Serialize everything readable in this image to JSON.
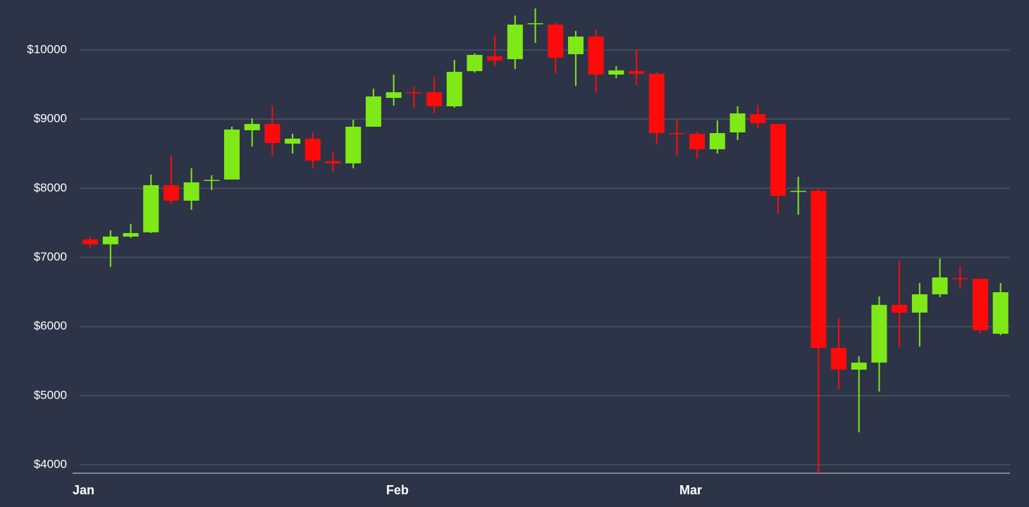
{
  "chart_data": {
    "type": "candlestick",
    "x": [
      1.75,
      3.75,
      5.75,
      7.75,
      9.75,
      11.75,
      13.75,
      15.75,
      17.75,
      19.75,
      21.75,
      23.75,
      25.75,
      27.75,
      29.75,
      31.75,
      33.75,
      35.75,
      37.75,
      39.75,
      41.75,
      43.75,
      45.75,
      47.75,
      49.75,
      51.75,
      53.75,
      55.75,
      57.75,
      59.75,
      61.75,
      63.75,
      65.75,
      67.75,
      69.75,
      71.75,
      73.75,
      75.75,
      77.75,
      79.75,
      81.75,
      83.75,
      85.75,
      87.75,
      89.75,
      91.75
    ],
    "open": [
      7260,
      7189,
      7301,
      7362,
      8044,
      7820,
      8105,
      8126,
      8839,
      8930,
      8645,
      8717,
      8391,
      8360,
      8890,
      9307,
      9389,
      9389,
      9185,
      9694,
      9908,
      9867,
      10377,
      10367,
      9939,
      10194,
      9644,
      9694,
      9654,
      8798,
      8788,
      8564,
      8808,
      9073,
      8930,
      7953,
      7963,
      5691,
      5376,
      5478,
      6313,
      6201,
      6466,
      6700,
      6690,
      5895
    ],
    "high": [
      7300,
      7392,
      7484,
      8197,
      8472,
      8289,
      8187,
      8890,
      9012,
      9185,
      8788,
      8808,
      8523,
      8992,
      9440,
      9644,
      9470,
      9613,
      9857,
      9949,
      10214,
      10499,
      10601,
      10397,
      10275,
      10295,
      9766,
      10010,
      9684,
      8992,
      8818,
      8981,
      9185,
      9206,
      8930,
      8166,
      7993,
      6119,
      5569,
      6435,
      6955,
      6628,
      6985,
      6873,
      6690,
      6628
    ],
    "low": [
      7140,
      6863,
      7280,
      7352,
      7769,
      7688,
      7973,
      8126,
      8605,
      8472,
      8503,
      8289,
      8238,
      8289,
      8890,
      9195,
      9165,
      9083,
      9165,
      9674,
      9766,
      9725,
      10102,
      9654,
      9480,
      9379,
      9593,
      9491,
      8635,
      8472,
      8431,
      8503,
      8696,
      8869,
      7637,
      7617,
      3878,
      5090,
      4469,
      5060,
      5702,
      5712,
      6425,
      6547,
      5895,
      5875
    ],
    "close": [
      7189,
      7301,
      7352,
      8044,
      7820,
      8085,
      8120,
      8849,
      8930,
      8655,
      8717,
      8401,
      8360,
      8890,
      9328,
      9389,
      9378,
      9185,
      9684,
      9929,
      9847,
      10367,
      10387,
      9888,
      10194,
      9644,
      9705,
      9654,
      8798,
      8788,
      8564,
      8798,
      9083,
      8941,
      7891,
      7963,
      5691,
      5376,
      5478,
      6313,
      6201,
      6466,
      6710,
      6690,
      5946,
      6496
    ],
    "up_color": "#7fe817",
    "down_color": "#ff0a0a",
    "xlim": [
      0,
      92.68
    ],
    "xticks": [
      {
        "value": 0,
        "label": "Jan"
      },
      {
        "value": 31,
        "label": "Feb"
      },
      {
        "value": 60,
        "label": "Mar"
      }
    ],
    "ylim": [
      3878,
      10723
    ],
    "yticks": [
      {
        "value": 4000,
        "label": "$4000"
      },
      {
        "value": 5000,
        "label": "$5000"
      },
      {
        "value": 6000,
        "label": "$6000"
      },
      {
        "value": 7000,
        "label": "$7000"
      },
      {
        "value": 8000,
        "label": "$8000"
      },
      {
        "value": 9000,
        "label": "$9000"
      },
      {
        "value": 10000,
        "label": "$10000"
      }
    ],
    "grid": true
  }
}
